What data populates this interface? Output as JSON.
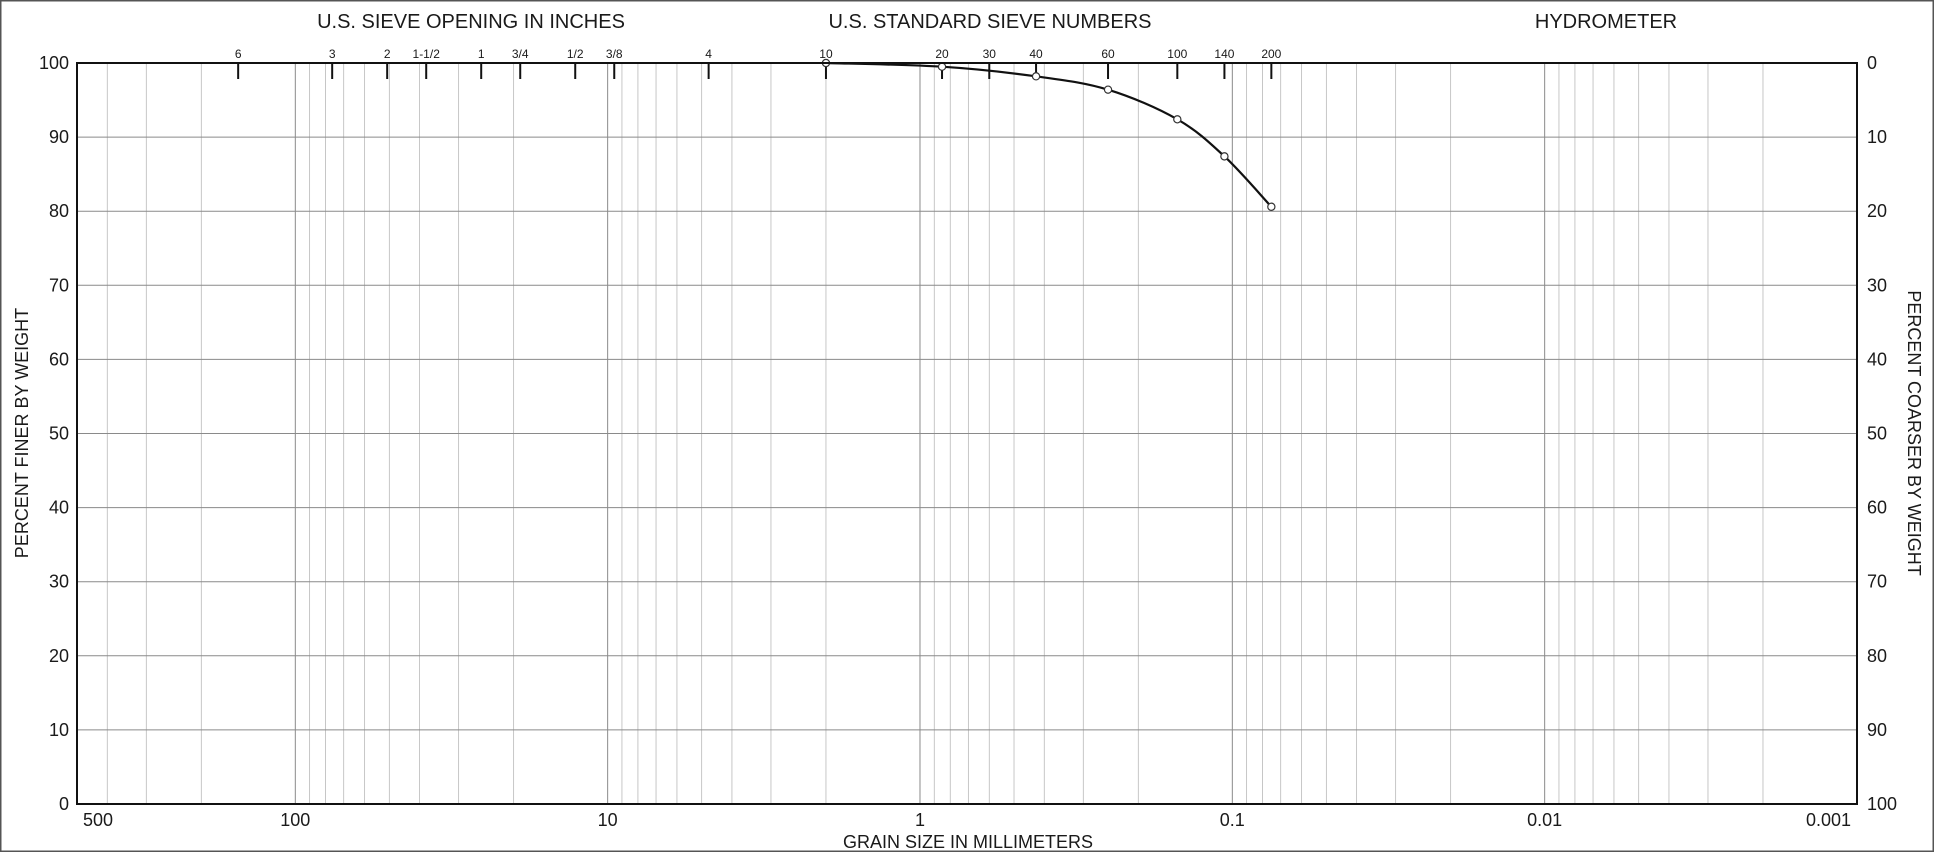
{
  "chart_data": {
    "type": "line",
    "headers": {
      "sieve_opening": "U.S. SIEVE OPENING IN INCHES",
      "standard_sieve": "U.S. STANDARD SIEVE NUMBERS",
      "hydrometer": "HYDROMETER"
    },
    "xlabel": "GRAIN SIZE IN MILLIMETERS",
    "ylabel": "PERCENT FINER BY WEIGHT",
    "ylabel_right": "PERCENT COARSER BY WEIGHT",
    "x_scale": "log",
    "x_reversed": true,
    "xlim": [
      500,
      0.001
    ],
    "ylim": [
      0,
      100
    ],
    "x_ticks": [
      {
        "value": 500,
        "label": "500"
      },
      {
        "value": 100,
        "label": "100"
      },
      {
        "value": 10,
        "label": "10"
      },
      {
        "value": 1,
        "label": "1"
      },
      {
        "value": 0.1,
        "label": "0.1"
      },
      {
        "value": 0.01,
        "label": "0.01"
      },
      {
        "value": 0.001,
        "label": "0.001"
      }
    ],
    "y_ticks": [
      0,
      10,
      20,
      30,
      40,
      50,
      60,
      70,
      80,
      90,
      100
    ],
    "y_ticks_right": [
      "100",
      "90",
      "80",
      "70",
      "60",
      "50",
      "40",
      "30",
      "20",
      "10",
      "0"
    ],
    "sieve_openings": [
      {
        "label": "6",
        "size": 152.4
      },
      {
        "label": "3",
        "size": 76.2
      },
      {
        "label": "2",
        "size": 50.8
      },
      {
        "label": "1-1/2",
        "size": 38.1
      },
      {
        "label": "1",
        "size": 25.4
      },
      {
        "label": "3/4",
        "size": 19.05
      },
      {
        "label": "1/2",
        "size": 12.7
      },
      {
        "label": "3/8",
        "size": 9.525
      }
    ],
    "standard_sieves": [
      {
        "label": "4",
        "size": 4.75
      },
      {
        "label": "10",
        "size": 2.0
      },
      {
        "label": "20",
        "size": 0.85
      },
      {
        "label": "30",
        "size": 0.6
      },
      {
        "label": "40",
        "size": 0.425
      },
      {
        "label": "60",
        "size": 0.25
      },
      {
        "label": "100",
        "size": 0.15
      },
      {
        "label": "140",
        "size": 0.106
      },
      {
        "label": "200",
        "size": 0.075
      }
    ],
    "series": [
      {
        "points": [
          {
            "x": 2.0,
            "y": 100
          },
          {
            "x": 0.85,
            "y": 99.5
          },
          {
            "x": 0.425,
            "y": 98.2
          },
          {
            "x": 0.25,
            "y": 96.4
          },
          {
            "x": 0.15,
            "y": 92.4
          },
          {
            "x": 0.106,
            "y": 87.4
          },
          {
            "x": 0.075,
            "y": 80.6
          }
        ]
      }
    ],
    "grid": true
  }
}
